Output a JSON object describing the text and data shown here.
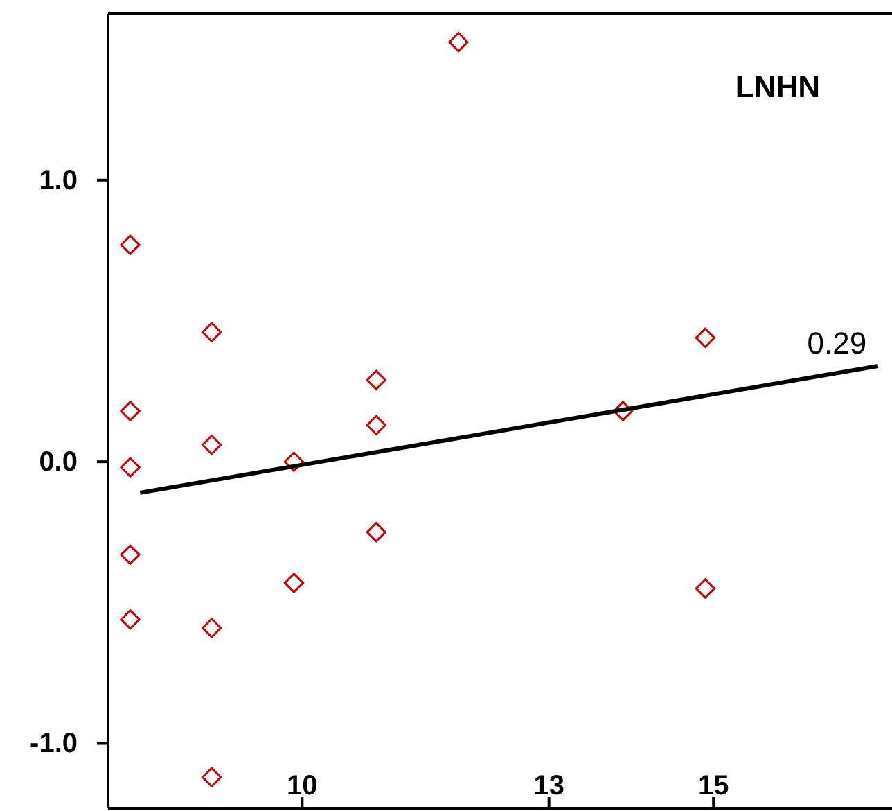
{
  "chart_data": {
    "type": "scatter",
    "title": "LNHN",
    "xlim": [
      7.64,
      17.17
    ],
    "ylim": [
      -1.23,
      1.59
    ],
    "xticks": [
      10,
      13,
      15
    ],
    "yticks": [
      {
        "value": 1,
        "label": "1.0"
      },
      {
        "value": 0,
        "label": "0.0"
      },
      {
        "value": -1,
        "label": "-1.0"
      }
    ],
    "series": [
      {
        "color": "#cc0000",
        "marker": "diamond",
        "x": [
          7.91,
          7.91,
          7.91,
          7.91,
          7.91,
          8.9,
          8.9,
          8.9,
          8.9,
          9.9,
          9.9,
          10.9,
          10.9,
          10.9,
          11.9,
          13.9,
          14.9,
          14.9
        ],
        "values": [
          0.77,
          0.18,
          -0.02,
          -0.33,
          -0.56,
          0.46,
          0.06,
          -0.59,
          -1.12,
          0.0,
          -0.43,
          0.29,
          0.13,
          -0.25,
          1.49,
          0.18,
          0.44,
          -0.45
        ]
      },
      {
        "type": "line",
        "color": "#000000",
        "x": [
          8.03,
          17.0
        ],
        "values": [
          -0.11,
          0.34
        ]
      }
    ],
    "annotations": [
      {
        "text": "0.29",
        "x": 16.5,
        "y": 0.31
      }
    ]
  }
}
